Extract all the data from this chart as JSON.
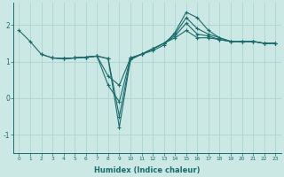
{
  "xlabel": "Humidex (Indice chaleur)",
  "bg_color": "#cce8e4",
  "grid_color": "#aad4d0",
  "line_color": "#1a6b6b",
  "xmin": -0.5,
  "xmax": 23.5,
  "ymin": -1.5,
  "ymax": 2.6,
  "yticks": [
    -1,
    0,
    1,
    2
  ],
  "xticks": [
    0,
    1,
    2,
    3,
    4,
    5,
    6,
    7,
    8,
    9,
    10,
    11,
    12,
    13,
    14,
    15,
    16,
    17,
    18,
    19,
    20,
    21,
    22,
    23
  ],
  "series": [
    [
      1.85,
      1.55,
      1.2,
      1.1,
      1.08,
      1.1,
      1.12,
      1.15,
      1.08,
      -0.8,
      1.05,
      1.2,
      1.3,
      1.45,
      1.8,
      2.35,
      2.2,
      1.85,
      1.65,
      1.55,
      1.55,
      1.55,
      1.5,
      1.5
    ],
    [
      null,
      null,
      1.2,
      1.1,
      1.08,
      1.1,
      1.12,
      1.15,
      1.08,
      -0.5,
      1.08,
      1.2,
      1.35,
      1.5,
      1.75,
      2.2,
      1.9,
      1.75,
      1.65,
      1.55,
      1.55,
      1.55,
      1.5,
      1.5
    ],
    [
      null,
      null,
      null,
      1.1,
      1.08,
      1.1,
      1.12,
      1.15,
      0.35,
      -0.1,
      1.1,
      1.2,
      1.35,
      1.5,
      1.7,
      2.05,
      1.75,
      1.7,
      1.6,
      1.55,
      1.55,
      1.55,
      1.5,
      1.5
    ],
    [
      null,
      null,
      null,
      null,
      1.08,
      1.1,
      1.12,
      1.15,
      0.6,
      0.35,
      1.1,
      1.2,
      1.35,
      1.5,
      1.65,
      1.85,
      1.65,
      1.65,
      1.6,
      1.55,
      1.55,
      1.55,
      1.5,
      1.5
    ]
  ]
}
